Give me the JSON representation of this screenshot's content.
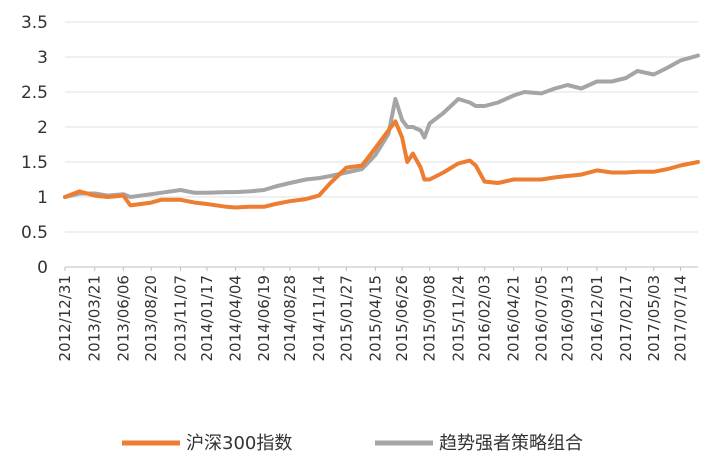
{
  "chart_data": {
    "type": "line",
    "title": "",
    "xlabel": "",
    "ylabel": "",
    "ylim": [
      0,
      3.5
    ],
    "y_ticks": [
      "0",
      "0.5",
      "1",
      "1.5",
      "2",
      "2.5",
      "3",
      "3.5"
    ],
    "x_tick_labels": [
      "2012/12/31",
      "2013/03/21",
      "2013/06/06",
      "2013/08/20",
      "2013/11/07",
      "2014/01/17",
      "2014/04/04",
      "2014/06/19",
      "2014/08/28",
      "2014/11/14",
      "2015/01/27",
      "2015/04/15",
      "2015/06/26",
      "2015/09/08",
      "2015/11/24",
      "2016/02/03",
      "2016/04/21",
      "2016/07/05",
      "2016/09/13",
      "2016/12/01",
      "2017/02/17",
      "2017/05/03",
      "2017/07/14"
    ],
    "grid": true,
    "legend_position": "bottom",
    "series": [
      {
        "name": "沪深300指数",
        "color": "#ED7D31",
        "x": [
          "2012/12/31",
          "2013/02/08",
          "2013/03/21",
          "2013/04/25",
          "2013/06/06",
          "2013/06/25",
          "2013/08/20",
          "2013/09/15",
          "2013/11/07",
          "2013/12/15",
          "2014/01/17",
          "2014/03/10",
          "2014/04/04",
          "2014/05/10",
          "2014/06/19",
          "2014/07/20",
          "2014/08/28",
          "2014/10/10",
          "2014/11/14",
          "2014/12/15",
          "2015/01/27",
          "2015/03/10",
          "2015/04/15",
          "2015/05/20",
          "2015/06/08",
          "2015/06/26",
          "2015/07/10",
          "2015/07/25",
          "2015/08/15",
          "2015/08/25",
          "2015/09/08",
          "2015/10/15",
          "2015/11/24",
          "2015/12/25",
          "2016/01/10",
          "2016/02/03",
          "2016/03/10",
          "2016/04/21",
          "2016/05/20",
          "2016/07/05",
          "2016/08/10",
          "2016/09/13",
          "2016/10/20",
          "2016/12/01",
          "2017/01/10",
          "2017/02/17",
          "2017/03/20",
          "2017/05/03",
          "2017/06/10",
          "2017/07/14",
          "2017/08/30"
        ],
        "y": [
          1.0,
          1.08,
          1.02,
          1.0,
          1.02,
          0.88,
          0.92,
          0.96,
          0.96,
          0.92,
          0.9,
          0.86,
          0.85,
          0.86,
          0.86,
          0.9,
          0.94,
          0.97,
          1.02,
          1.2,
          1.42,
          1.45,
          1.7,
          1.95,
          2.08,
          1.85,
          1.5,
          1.62,
          1.42,
          1.25,
          1.25,
          1.35,
          1.48,
          1.52,
          1.45,
          1.22,
          1.2,
          1.25,
          1.25,
          1.25,
          1.28,
          1.3,
          1.32,
          1.38,
          1.35,
          1.35,
          1.36,
          1.36,
          1.4,
          1.45,
          1.5
        ]
      },
      {
        "name": "趋势强者策略组合",
        "color": "#A5A5A5",
        "x": [
          "2012/12/31",
          "2013/02/08",
          "2013/03/21",
          "2013/04/25",
          "2013/06/06",
          "2013/06/25",
          "2013/08/20",
          "2013/09/15",
          "2013/11/07",
          "2013/12/15",
          "2014/01/17",
          "2014/03/10",
          "2014/04/04",
          "2014/05/10",
          "2014/06/19",
          "2014/07/20",
          "2014/08/28",
          "2014/10/10",
          "2014/11/14",
          "2014/12/15",
          "2015/01/27",
          "2015/03/10",
          "2015/04/15",
          "2015/05/20",
          "2015/06/08",
          "2015/06/26",
          "2015/07/10",
          "2015/07/25",
          "2015/08/15",
          "2015/08/25",
          "2015/09/08",
          "2015/10/15",
          "2015/11/24",
          "2015/12/25",
          "2016/01/10",
          "2016/02/03",
          "2016/03/10",
          "2016/04/21",
          "2016/05/20",
          "2016/07/05",
          "2016/08/10",
          "2016/09/13",
          "2016/10/20",
          "2016/12/01",
          "2017/01/10",
          "2017/02/17",
          "2017/03/20",
          "2017/05/03",
          "2017/06/10",
          "2017/07/14",
          "2017/08/30"
        ],
        "y": [
          1.0,
          1.05,
          1.05,
          1.02,
          1.04,
          1.0,
          1.04,
          1.06,
          1.1,
          1.06,
          1.06,
          1.07,
          1.07,
          1.08,
          1.1,
          1.15,
          1.2,
          1.25,
          1.27,
          1.3,
          1.35,
          1.4,
          1.6,
          1.9,
          2.4,
          2.1,
          2.0,
          2.0,
          1.95,
          1.85,
          2.05,
          2.2,
          2.4,
          2.35,
          2.3,
          2.3,
          2.35,
          2.45,
          2.5,
          2.48,
          2.55,
          2.6,
          2.55,
          2.65,
          2.65,
          2.7,
          2.8,
          2.75,
          2.85,
          2.95,
          3.02
        ]
      }
    ]
  }
}
